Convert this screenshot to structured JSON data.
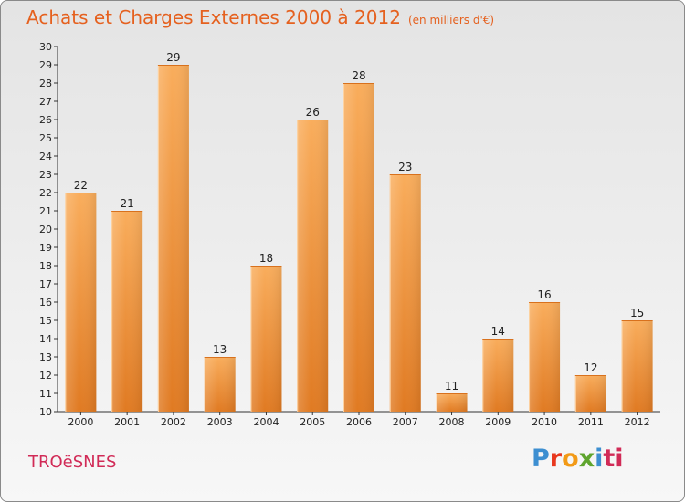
{
  "header": {
    "title": "Achats et Charges Externes 2000 à 2012",
    "subtitle": "(en milliers d'€)"
  },
  "footer": {
    "commune": "TROëSNES",
    "logo_parts": [
      "P",
      "r",
      "o",
      "x",
      "i",
      "ti"
    ]
  },
  "colors": {
    "title": "#e5611f",
    "commune": "#d12b57",
    "bar_light": "#f7a957",
    "bar_dark": "#e07d24"
  },
  "chart_data": {
    "type": "bar",
    "title": "Achats et Charges Externes 2000 à 2012",
    "subtitle": "(en milliers d'€)",
    "categories": [
      "2000",
      "2001",
      "2002",
      "2003",
      "2004",
      "2005",
      "2006",
      "2007",
      "2008",
      "2009",
      "2010",
      "2011",
      "2012"
    ],
    "values": [
      22,
      21,
      29,
      13,
      18,
      26,
      28,
      23,
      11,
      14,
      16,
      12,
      15
    ],
    "ylim": [
      10,
      30
    ],
    "yticks": [
      10,
      11,
      12,
      13,
      14,
      15,
      16,
      17,
      18,
      19,
      20,
      21,
      22,
      23,
      24,
      25,
      26,
      27,
      28,
      29,
      30
    ],
    "grid": false,
    "legend": "none"
  }
}
